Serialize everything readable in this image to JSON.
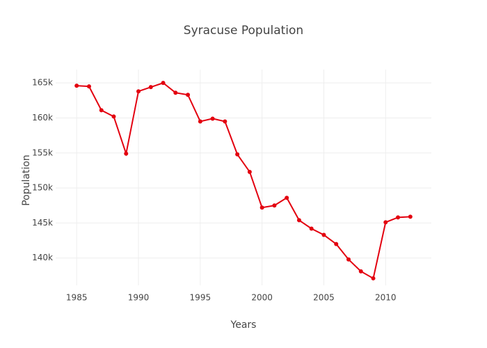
{
  "chart_data": {
    "type": "line",
    "title": "Syracuse Population",
    "x_label": "Years",
    "y_label": "Population",
    "x": [
      1985,
      1986,
      1987,
      1988,
      1989,
      1990,
      1991,
      1992,
      1993,
      1994,
      1995,
      1996,
      1997,
      1998,
      1999,
      2000,
      2001,
      2002,
      2003,
      2004,
      2005,
      2006,
      2007,
      2008,
      2009,
      2010,
      2011,
      2012
    ],
    "values": [
      164600,
      164500,
      161100,
      160200,
      154900,
      163800,
      164400,
      165000,
      163600,
      163300,
      159500,
      159900,
      159500,
      154800,
      152300,
      147200,
      147500,
      148600,
      145400,
      144200,
      143300,
      142000,
      139800,
      138100,
      137100,
      145100,
      145800,
      145900
    ],
    "color": "#e3000f",
    "xlim": [
      1983.3,
      2013.7
    ],
    "xticks": [
      1985,
      1990,
      1995,
      2000,
      2005,
      2010
    ],
    "ylim": [
      136100,
      166900
    ],
    "yticks": [
      {
        "value": 140000,
        "label": "140k"
      },
      {
        "value": 145000,
        "label": "145k"
      },
      {
        "value": 150000,
        "label": "150k"
      },
      {
        "value": 155000,
        "label": "155k"
      },
      {
        "value": 160000,
        "label": "160k"
      },
      {
        "value": 165000,
        "label": "165k"
      }
    ],
    "grid": true
  }
}
